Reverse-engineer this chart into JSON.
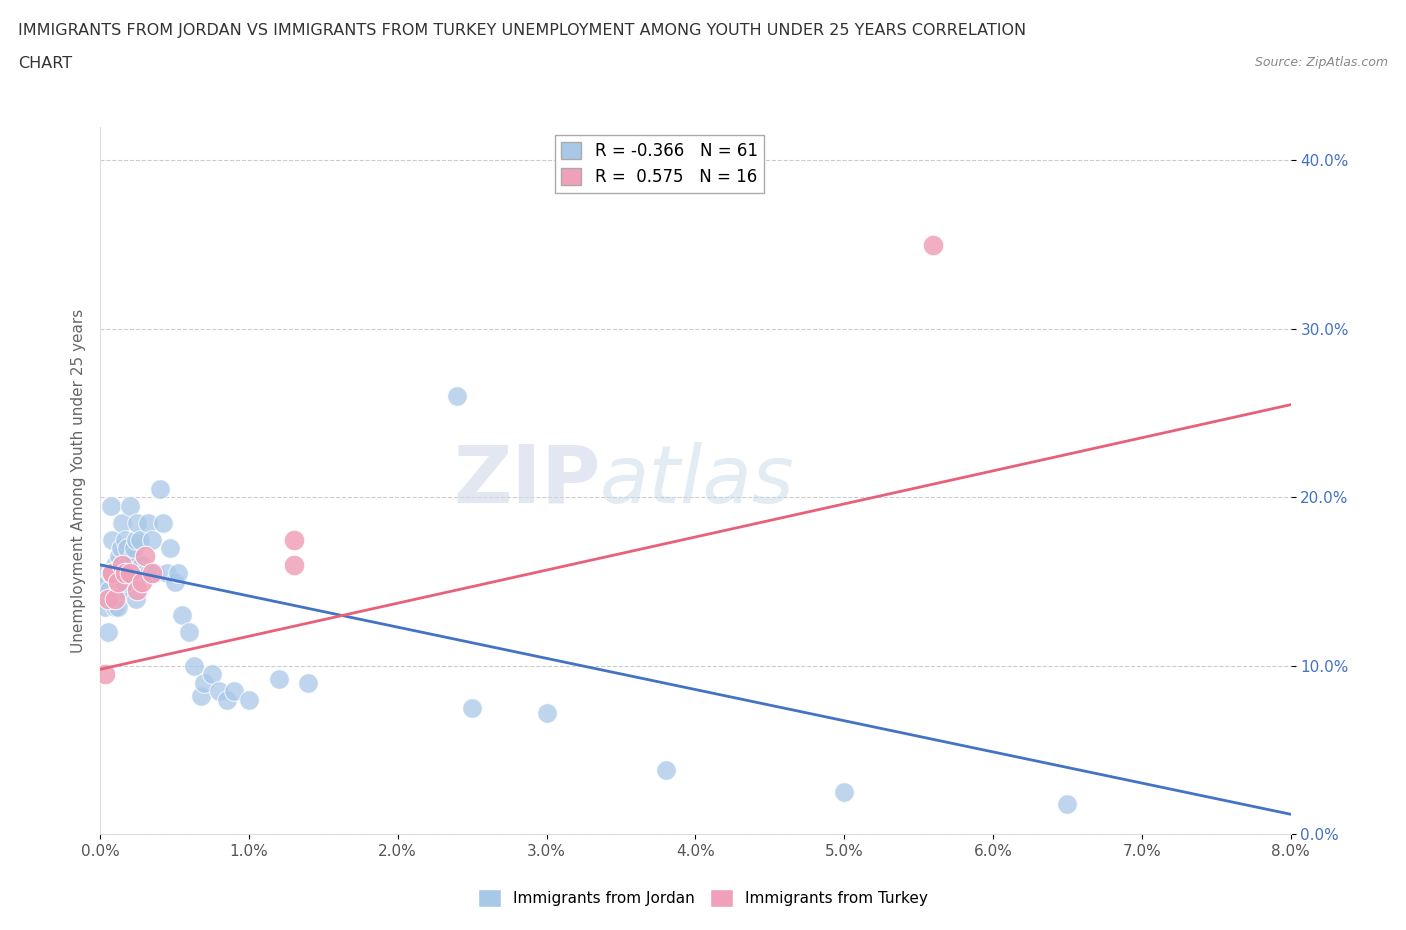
{
  "title_line1": "IMMIGRANTS FROM JORDAN VS IMMIGRANTS FROM TURKEY UNEMPLOYMENT AMONG YOUTH UNDER 25 YEARS CORRELATION",
  "title_line2": "CHART",
  "source": "Source: ZipAtlas.com",
  "ylabel": "Unemployment Among Youth under 25 years",
  "jordan_R": -0.366,
  "jordan_N": 61,
  "turkey_R": 0.575,
  "turkey_N": 16,
  "xlim": [
    0.0,
    0.08
  ],
  "ylim": [
    0.0,
    0.42
  ],
  "yticks": [
    0.0,
    0.1,
    0.2,
    0.3,
    0.4
  ],
  "xticks": [
    0.0,
    0.01,
    0.02,
    0.03,
    0.04,
    0.05,
    0.06,
    0.07,
    0.08
  ],
  "jordan_color": "#A8C8E8",
  "turkey_color": "#F0A0B8",
  "jordan_line_color": "#4472C4",
  "turkey_line_color": "#E8607A",
  "background_color": "#FFFFFF",
  "watermark_left": "ZIP",
  "watermark_right": "atlas",
  "jordan_line_x0": 0.0,
  "jordan_line_y0": 0.16,
  "jordan_line_x1": 0.08,
  "jordan_line_y1": 0.012,
  "turkey_line_x0": 0.0,
  "turkey_line_y0": 0.098,
  "turkey_line_x1": 0.08,
  "turkey_line_y1": 0.255,
  "jordan_scatter_x": [
    0.0003,
    0.0003,
    0.0005,
    0.0005,
    0.0006,
    0.0007,
    0.0008,
    0.0008,
    0.001,
    0.001,
    0.001,
    0.0012,
    0.0012,
    0.0013,
    0.0013,
    0.0014,
    0.0015,
    0.0015,
    0.0015,
    0.0016,
    0.0017,
    0.0018,
    0.0018,
    0.0019,
    0.002,
    0.0021,
    0.0022,
    0.0023,
    0.0024,
    0.0024,
    0.0025,
    0.0027,
    0.0028,
    0.003,
    0.0032,
    0.0033,
    0.0035,
    0.0037,
    0.004,
    0.0042,
    0.0045,
    0.0047,
    0.005,
    0.0052,
    0.0055,
    0.006,
    0.0063,
    0.0068,
    0.007,
    0.0075,
    0.008,
    0.0085,
    0.009,
    0.01,
    0.012,
    0.014,
    0.025,
    0.03,
    0.038,
    0.05,
    0.065
  ],
  "jordan_scatter_y": [
    0.155,
    0.135,
    0.15,
    0.12,
    0.145,
    0.195,
    0.175,
    0.155,
    0.16,
    0.135,
    0.14,
    0.135,
    0.145,
    0.155,
    0.165,
    0.17,
    0.16,
    0.145,
    0.185,
    0.15,
    0.175,
    0.16,
    0.17,
    0.155,
    0.195,
    0.155,
    0.165,
    0.17,
    0.175,
    0.14,
    0.185,
    0.175,
    0.16,
    0.155,
    0.185,
    0.155,
    0.175,
    0.155,
    0.205,
    0.185,
    0.155,
    0.17,
    0.15,
    0.155,
    0.13,
    0.12,
    0.1,
    0.082,
    0.09,
    0.095,
    0.085,
    0.08,
    0.085,
    0.08,
    0.092,
    0.09,
    0.075,
    0.072,
    0.038,
    0.025,
    0.018
  ],
  "jordan_outlier_x": [
    0.024
  ],
  "jordan_outlier_y": [
    0.26
  ],
  "turkey_scatter_x": [
    0.0003,
    0.0005,
    0.0007,
    0.0008,
    0.001,
    0.0012,
    0.0015,
    0.0017,
    0.002,
    0.0025,
    0.0028,
    0.003,
    0.0035,
    0.013,
    0.013,
    0.056
  ],
  "turkey_scatter_y": [
    0.095,
    0.14,
    0.155,
    0.155,
    0.14,
    0.15,
    0.16,
    0.155,
    0.155,
    0.145,
    0.15,
    0.165,
    0.155,
    0.16,
    0.175,
    0.35
  ]
}
